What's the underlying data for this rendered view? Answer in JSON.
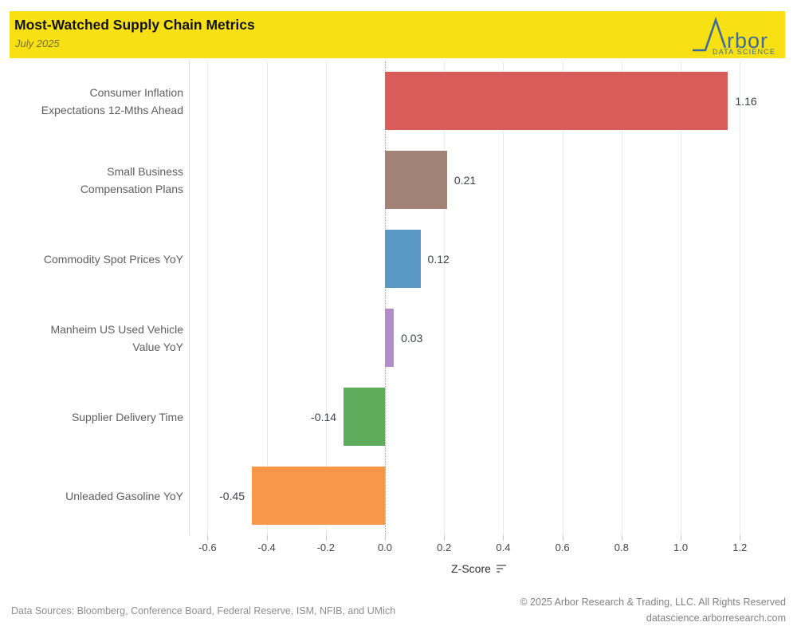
{
  "header": {
    "title": "Most-Watched Supply Chain Metrics",
    "subtitle": "July 2025",
    "background_color": "#F7E014",
    "logo": {
      "name": "Arbor Data Science",
      "wordmark_rest": "rbor",
      "tagline": "DATA SCIENCE",
      "color": "#3E6C9A"
    }
  },
  "chart_data": {
    "type": "bar",
    "orientation": "horizontal",
    "title": "Most-Watched Supply Chain Metrics",
    "subtitle": "July 2025",
    "xlabel": "Z-Score",
    "grid": true,
    "axis": {
      "xlim": [
        -0.663,
        1.299
      ],
      "xticks": [
        -0.6,
        -0.4,
        -0.2,
        0.0,
        0.2,
        0.4,
        0.6,
        0.8,
        1.0,
        1.2
      ]
    },
    "categories": [
      "Consumer Inflation Expectations 12-Mths Ahead",
      "Small Business Compensation Plans",
      "Commodity Spot Prices YoY",
      "Manheim US Used Vehicle Value YoY",
      "Supplier Delivery Time",
      "Unleaded Gasoline YoY"
    ],
    "category_lines": [
      [
        "Consumer Inflation",
        "Expectations 12-Mths Ahead"
      ],
      [
        "Small Business",
        "Compensation Plans"
      ],
      [
        "Commodity Spot Prices YoY"
      ],
      [
        "Manheim US Used Vehicle",
        "Value YoY"
      ],
      [
        "Supplier Delivery Time"
      ],
      [
        "Unleaded Gasoline YoY"
      ]
    ],
    "values": [
      1.16,
      0.21,
      0.12,
      0.03,
      -0.14,
      -0.45
    ],
    "value_labels": [
      "1.16",
      "0.21",
      "0.12",
      "0.03",
      "-0.14",
      "-0.45"
    ],
    "bar_colors": [
      "#D95C5A",
      "#A28177",
      "#5A98C6",
      "#B48CCB",
      "#5DAD5C",
      "#F99749"
    ]
  },
  "colors": {
    "gridline": "#EAEAEA",
    "zero_line": "#9A9A9A",
    "plot_border": "#DADADA",
    "category_text": "#5E5E5E",
    "value_text": "#3A424C",
    "tick_text": "#454545",
    "footer_text": "#8A8A8A",
    "subtitle_text": "#756F2A"
  },
  "footer": {
    "sources": "Data Sources: Bloomberg, Conference Board, Federal Reserve, ISM, NFIB, and UMich",
    "copyright": "© 2025 Arbor Research & Trading, LLC. All Rights Reserved",
    "website": "datascience.arborresearch.com"
  }
}
